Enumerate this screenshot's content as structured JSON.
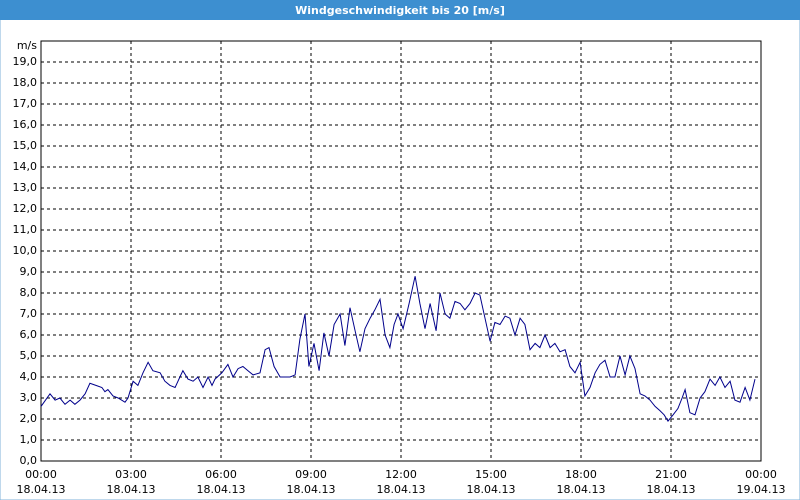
{
  "chart_data": {
    "type": "line",
    "title": "Windgeschwindigkeit bis 20 [m/s]",
    "y_label": "m/s",
    "x": [
      0,
      0.3,
      0.47,
      0.63,
      0.8,
      0.97,
      1.13,
      1.3,
      1.47,
      1.63,
      1.83,
      2.03,
      2.13,
      2.23,
      2.4,
      2.57,
      2.8,
      2.9,
      3.07,
      3.23,
      3.4,
      3.57,
      3.73,
      3.97,
      4.13,
      4.3,
      4.47,
      4.63,
      4.73,
      4.9,
      5.07,
      5.23,
      5.4,
      5.57,
      5.7,
      5.8,
      6.03,
      6.23,
      6.4,
      6.57,
      6.73,
      6.9,
      7.07,
      7.3,
      7.47,
      7.6,
      7.77,
      7.97,
      8.13,
      8.3,
      8.47,
      8.63,
      8.8,
      8.93,
      9.1,
      9.27,
      9.43,
      9.6,
      9.77,
      9.97,
      10.13,
      10.3,
      10.47,
      10.63,
      10.8,
      10.97,
      11.13,
      11.3,
      11.47,
      11.63,
      11.77,
      11.9,
      12.07,
      12.27,
      12.47,
      12.63,
      12.8,
      12.97,
      13.17,
      13.3,
      13.47,
      13.63,
      13.8,
      13.97,
      14.13,
      14.3,
      14.47,
      14.63,
      14.8,
      14.97,
      15.13,
      15.3,
      15.47,
      15.63,
      15.8,
      15.97,
      16.13,
      16.3,
      16.47,
      16.63,
      16.8,
      16.97,
      17.13,
      17.3,
      17.47,
      17.63,
      17.8,
      17.97,
      18.13,
      18.3,
      18.47,
      18.63,
      18.8,
      18.97,
      19.13,
      19.3,
      19.47,
      19.63,
      19.8,
      19.97,
      20.13,
      20.3,
      20.47,
      20.63,
      20.77,
      20.9,
      21.07,
      21.23,
      21.37,
      21.47,
      21.63,
      21.8,
      21.97,
      22.13,
      22.3,
      22.47,
      22.63,
      22.8,
      22.97,
      23.13,
      23.3,
      23.47,
      23.63,
      23.8
    ],
    "series": [
      {
        "color": "#00008b",
        "values": [
          2.6,
          3.2,
          2.9,
          3.0,
          2.7,
          2.9,
          2.7,
          2.9,
          3.2,
          3.7,
          3.6,
          3.5,
          3.3,
          3.4,
          3.1,
          3.0,
          2.8,
          3.0,
          3.8,
          3.6,
          4.2,
          4.7,
          4.3,
          4.2,
          3.8,
          3.6,
          3.5,
          4.0,
          4.3,
          3.9,
          3.8,
          4.0,
          3.5,
          4.0,
          3.6,
          3.9,
          4.2,
          4.6,
          4.0,
          4.4,
          4.5,
          4.3,
          4.1,
          4.2,
          5.3,
          5.4,
          4.5,
          4.0,
          4.0,
          4.0,
          4.1,
          5.8,
          7.0,
          4.5,
          5.6,
          4.3,
          6.1,
          5.0,
          6.5,
          7.0,
          5.5,
          7.3,
          6.2,
          5.2,
          6.3,
          6.8,
          7.2,
          7.7,
          6.0,
          5.4,
          6.5,
          7.0,
          6.3,
          7.5,
          8.8,
          7.5,
          6.3,
          7.5,
          6.2,
          8.0,
          7.0,
          6.8,
          7.6,
          7.5,
          7.2,
          7.5,
          8.0,
          7.9,
          6.8,
          5.7,
          6.6,
          6.5,
          6.9,
          6.8,
          6.0,
          6.8,
          6.5,
          5.3,
          5.6,
          5.4,
          6.0,
          5.4,
          5.6,
          5.2,
          5.3,
          4.5,
          4.2,
          4.7,
          3.1,
          3.5,
          4.2,
          4.6,
          4.8,
          4.0,
          4.0,
          5.0,
          4.1,
          5.0,
          4.4,
          3.2,
          3.1,
          2.9,
          2.6,
          2.4,
          2.2,
          1.9,
          2.2,
          2.5,
          3.0,
          3.4,
          2.3,
          2.2,
          3.0,
          3.3,
          3.9,
          3.6,
          4.0,
          3.5,
          3.8,
          2.9,
          2.8,
          3.5,
          2.9,
          3.9
        ]
      }
    ],
    "xlim": [
      0,
      24
    ],
    "xticks": [
      {
        "value": 0,
        "label": "00:00",
        "date": "18.04.13"
      },
      {
        "value": 3,
        "label": "03:00",
        "date": "18.04.13"
      },
      {
        "value": 6,
        "label": "06:00",
        "date": "18.04.13"
      },
      {
        "value": 9,
        "label": "09:00",
        "date": "18.04.13"
      },
      {
        "value": 12,
        "label": "12:00",
        "date": "18.04.13"
      },
      {
        "value": 15,
        "label": "15:00",
        "date": "18.04.13"
      },
      {
        "value": 18,
        "label": "18:00",
        "date": "18.04.13"
      },
      {
        "value": 21,
        "label": "21:00",
        "date": "18.04.13"
      },
      {
        "value": 24,
        "label": "00:00",
        "date": "19.04.13"
      }
    ],
    "ylim": [
      0,
      20
    ],
    "yticks": [
      {
        "value": 0,
        "label": "0,0"
      },
      {
        "value": 1,
        "label": "1,0"
      },
      {
        "value": 2,
        "label": "2,0"
      },
      {
        "value": 3,
        "label": "3,0"
      },
      {
        "value": 4,
        "label": "4,0"
      },
      {
        "value": 5,
        "label": "5,0"
      },
      {
        "value": 6,
        "label": "6,0"
      },
      {
        "value": 7,
        "label": "7,0"
      },
      {
        "value": 8,
        "label": "8,0"
      },
      {
        "value": 9,
        "label": "9,0"
      },
      {
        "value": 10,
        "label": "10,0"
      },
      {
        "value": 11,
        "label": "11,0"
      },
      {
        "value": 12,
        "label": "12,0"
      },
      {
        "value": 13,
        "label": "13,0"
      },
      {
        "value": 14,
        "label": "14,0"
      },
      {
        "value": 15,
        "label": "15,0"
      },
      {
        "value": 16,
        "label": "16,0"
      },
      {
        "value": 17,
        "label": "17,0"
      },
      {
        "value": 18,
        "label": "18,0"
      },
      {
        "value": 19,
        "label": "19,0"
      }
    ],
    "grid": true
  }
}
